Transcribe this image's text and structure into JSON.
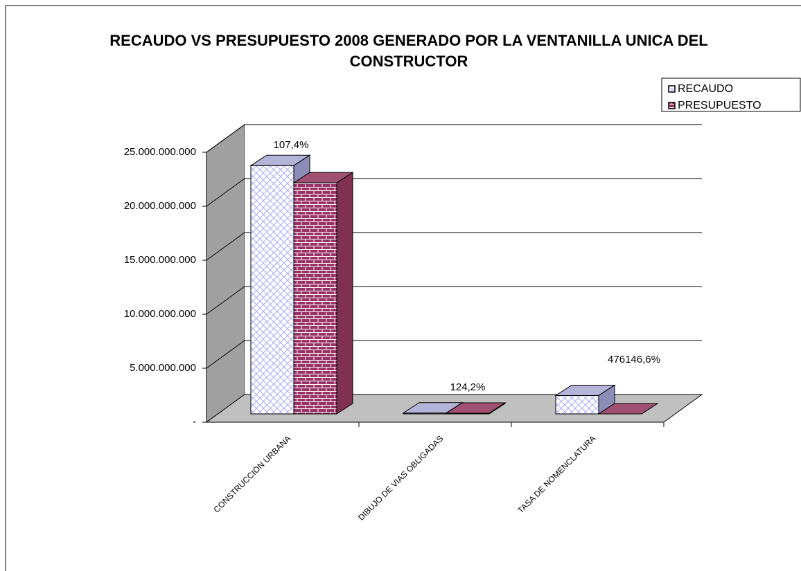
{
  "chart_data": {
    "type": "bar3d",
    "title": "RECAUDO VS PRESUPUESTO 2008 GENERADO POR LA VENTANILLA UNICA DEL CONSTRUCTOR",
    "categories": [
      "CONSTRUCCIÓN URBANA",
      "DIBUJO DE VIAS OBLIGADAS",
      "TASA DE NOMENCLATURA"
    ],
    "series": [
      {
        "name": "RECAUDO",
        "color": "#9999ff",
        "values": [
          23000000000,
          80000000,
          1700000000
        ]
      },
      {
        "name": "PRESUPUESTO",
        "color": "#993366",
        "values": [
          21400000000,
          64400000,
          357000
        ]
      }
    ],
    "annotations": [
      "107,4%",
      "124,2%",
      "476146,6%"
    ],
    "ylim": [
      0,
      25000000000
    ],
    "yticks": [
      {
        "value": 0,
        "label": "-"
      },
      {
        "value": 5000000000,
        "label": "5.000.000.000"
      },
      {
        "value": 10000000000,
        "label": "10.000.000.000"
      },
      {
        "value": 15000000000,
        "label": "15.000.000.000"
      },
      {
        "value": 20000000000,
        "label": "20.000.000.000"
      },
      {
        "value": 25000000000,
        "label": "25.000.000.000"
      }
    ],
    "grid": true,
    "legend": "top-right"
  }
}
